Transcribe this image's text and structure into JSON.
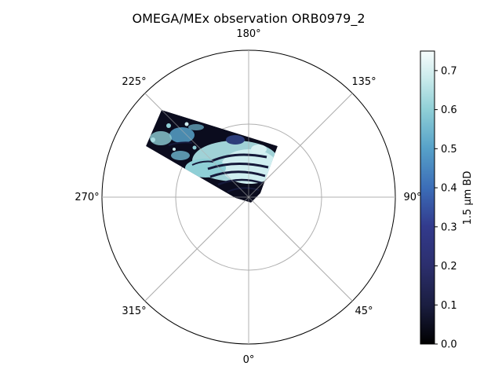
{
  "chart_data": {
    "type": "heatmap",
    "projection": "polar",
    "title": "OMEGA/MEx observation ORB0979_2",
    "theta_ticks": [
      "180°",
      "135°",
      "90°",
      "45°",
      "0°",
      "315°",
      "270°",
      "225°"
    ],
    "theta_direction": "0° at bottom, increasing counter-clockwise",
    "radial_grid": true,
    "colorbar": {
      "label": "1.5 µm BD",
      "ticks": [
        "0.0",
        "0.1",
        "0.2",
        "0.3",
        "0.4",
        "0.5",
        "0.6",
        "0.7"
      ],
      "vmin": 0.0,
      "vmax": 0.75,
      "colormap": [
        "#000000",
        "#1a1d3f",
        "#323a8c",
        "#3b6cb7",
        "#57a2c9",
        "#8fcfd6",
        "#c6e9ea",
        "#ffffff"
      ]
    },
    "swath": {
      "description_colors": {
        "low": "#0b0c1e",
        "mid": "#2c3d7a",
        "high": "#a9dde2"
      }
    }
  }
}
